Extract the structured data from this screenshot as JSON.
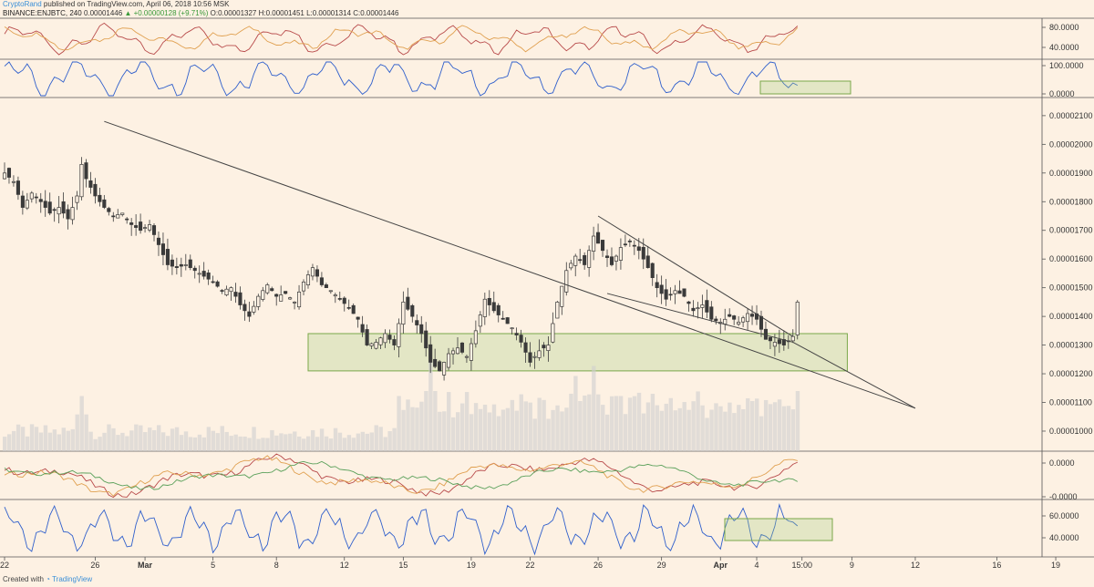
{
  "header": {
    "author": "CryptoRand",
    "published": "published on TradingView.com, April 06, 2018 10:56 MSK",
    "symbol": "BINANCE:ENJBTC, 240",
    "last": "0.00001446",
    "change": "▲ +0.00000128 (+9.71%)",
    "ohlc": "O:0.00001327 H:0.00001451 L:0.00001314 C:0.00001446"
  },
  "footer": {
    "created_with": "Created with",
    "brand": "TradingView"
  },
  "colors": {
    "background": "#fdf1e3",
    "candle": "#3a3a3a",
    "trendline": "#444444",
    "zone_fill": "rgba(160,200,120,0.28)",
    "zone_stroke": "#7aa84a",
    "osc_blue": "#2f5fcc",
    "osc_orange": "#e0a050",
    "osc_red": "#b84a4a",
    "osc_green": "#5aa05a",
    "volume": "#cfcfcf"
  },
  "chart_data": {
    "type": "candlestick",
    "symbol": "ENJBTC",
    "timeframe": "240",
    "x_ticks": [
      "22",
      "26",
      "Mar",
      "5",
      "8",
      "12",
      "15",
      "19",
      "22",
      "26",
      "29",
      "Apr",
      "4",
      "15:00",
      "9",
      "12",
      "16",
      "19"
    ],
    "y_ticks": [
      "0.00002100",
      "0.00002000",
      "0.00001900",
      "0.00001800",
      "0.00001700",
      "0.00001600",
      "0.00001500",
      "0.00001400",
      "0.00001300",
      "0.00001200",
      "0.00001100",
      "0.00001000"
    ],
    "ylim": [
      9.3e-06,
      2.16e-05
    ],
    "price_path": [
      [
        0,
        1.9e-05
      ],
      [
        2,
        1.87e-05
      ],
      [
        4,
        1.78e-05
      ],
      [
        6,
        1.83e-05
      ],
      [
        8,
        1.8e-05
      ],
      [
        10,
        1.76e-05
      ],
      [
        12,
        1.78e-05
      ],
      [
        14,
        1.74e-05
      ],
      [
        16,
        1.82e-05
      ],
      [
        17,
        1.93e-05
      ],
      [
        18,
        1.88e-05
      ],
      [
        20,
        1.82e-05
      ],
      [
        22,
        1.78e-05
      ],
      [
        24,
        1.75e-05
      ],
      [
        26,
        1.76e-05
      ],
      [
        28,
        1.72e-05
      ],
      [
        30,
        1.7e-05
      ],
      [
        32,
        1.72e-05
      ],
      [
        34,
        1.65e-05
      ],
      [
        36,
        1.58e-05
      ],
      [
        38,
        1.57e-05
      ],
      [
        40,
        1.58e-05
      ],
      [
        42,
        1.56e-05
      ],
      [
        44,
        1.54e-05
      ],
      [
        46,
        1.52e-05
      ],
      [
        48,
        1.49e-05
      ],
      [
        50,
        1.5e-05
      ],
      [
        52,
        1.44e-05
      ],
      [
        54,
        1.4e-05
      ],
      [
        56,
        1.47e-05
      ],
      [
        58,
        1.51e-05
      ],
      [
        60,
        1.47e-05
      ],
      [
        62,
        1.48e-05
      ],
      [
        64,
        1.45e-05
      ],
      [
        66,
        1.52e-05
      ],
      [
        68,
        1.57e-05
      ],
      [
        70,
        1.51e-05
      ],
      [
        72,
        1.49e-05
      ],
      [
        74,
        1.46e-05
      ],
      [
        76,
        1.43e-05
      ],
      [
        78,
        1.39e-05
      ],
      [
        80,
        1.3e-05
      ],
      [
        82,
        1.31e-05
      ],
      [
        84,
        1.34e-05
      ],
      [
        86,
        1.3e-05
      ],
      [
        88,
        1.45e-05
      ],
      [
        90,
        1.4e-05
      ],
      [
        92,
        1.34e-05
      ],
      [
        94,
        1.24e-05
      ],
      [
        96,
        1.21e-05
      ],
      [
        98,
        1.27e-05
      ],
      [
        100,
        1.29e-05
      ],
      [
        102,
        1.26e-05
      ],
      [
        104,
        1.35e-05
      ],
      [
        106,
        1.46e-05
      ],
      [
        108,
        1.42e-05
      ],
      [
        110,
        1.39e-05
      ],
      [
        112,
        1.36e-05
      ],
      [
        114,
        1.31e-05
      ],
      [
        116,
        1.24e-05
      ],
      [
        118,
        1.28e-05
      ],
      [
        120,
        1.3e-05
      ],
      [
        122,
        1.45e-05
      ],
      [
        124,
        1.56e-05
      ],
      [
        126,
        1.61e-05
      ],
      [
        128,
        1.58e-05
      ],
      [
        130,
        1.68e-05
      ],
      [
        132,
        1.63e-05
      ],
      [
        134,
        1.58e-05
      ],
      [
        136,
        1.64e-05
      ],
      [
        138,
        1.66e-05
      ],
      [
        140,
        1.63e-05
      ],
      [
        142,
        1.57e-05
      ],
      [
        144,
        1.5e-05
      ],
      [
        146,
        1.46e-05
      ],
      [
        148,
        1.49e-05
      ],
      [
        150,
        1.47e-05
      ],
      [
        152,
        1.42e-05
      ],
      [
        154,
        1.44e-05
      ],
      [
        156,
        1.39e-05
      ],
      [
        158,
        1.38e-05
      ],
      [
        160,
        1.4e-05
      ],
      [
        162,
        1.38e-05
      ],
      [
        164,
        1.41e-05
      ],
      [
        166,
        1.39e-05
      ],
      [
        168,
        1.32e-05
      ],
      [
        170,
        1.31e-05
      ],
      [
        172,
        1.3e-05
      ],
      [
        174,
        1.33e-05
      ],
      [
        175,
        1.45e-05
      ]
    ],
    "volume_spikes": [
      [
        17,
        0.55
      ],
      [
        94,
        0.9
      ],
      [
        104,
        0.35
      ],
      [
        126,
        0.75
      ],
      [
        130,
        0.85
      ],
      [
        136,
        0.55
      ],
      [
        166,
        0.35
      ],
      [
        175,
        0.6
      ]
    ],
    "annotations": {
      "long_trendline": [
        [
          22,
          2.08e-05
        ],
        [
          201,
          1.08e-05
        ]
      ],
      "wedge_upper": [
        [
          131,
          1.75e-05
        ],
        [
          174,
          1.33e-05
        ]
      ],
      "wedge_lower": [
        [
          133,
          1.48e-05
        ],
        [
          174,
          1.31e-05
        ]
      ],
      "support_zone": {
        "x": [
          67,
          186
        ],
        "y": [
          1.21e-05,
          1.34e-05
        ]
      }
    },
    "panels": [
      {
        "name": "oscillator-1",
        "ticks": [
          "80.0000",
          "40.0000"
        ]
      },
      {
        "name": "oscillator-2",
        "ticks": [
          "100.0000",
          "0.0000"
        ]
      },
      {
        "name": "oscillator-3",
        "ticks": [
          "0.0000",
          "-0.0000"
        ]
      },
      {
        "name": "oscillator-4",
        "ticks": [
          "60.0000",
          "40.0000"
        ]
      }
    ],
    "x_tick_index": [
      0,
      20,
      31,
      46,
      60,
      75,
      88,
      103,
      116,
      131,
      145,
      158,
      166,
      176,
      187,
      201,
      219,
      232
    ]
  }
}
